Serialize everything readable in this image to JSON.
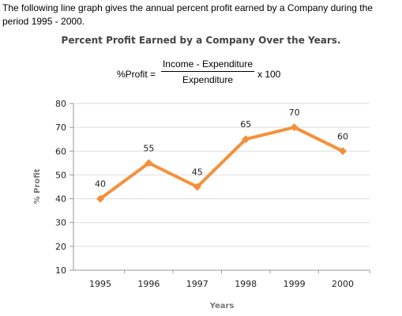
{
  "intro_text": "The following line graph gives the annual percent profit earned by a Company during the period 1995 - 2000.",
  "formula": {
    "lhs": "%Profit =",
    "numerator": "Income - Expenditure",
    "denominator": "Expenditure",
    "rhs": "x 100"
  },
  "colors": {
    "line": "#F4903A",
    "grid": "#dddddd",
    "axis": "#999999"
  },
  "chart_data": {
    "type": "line",
    "title": "Percent Profit Earned by a Company Over the Years.",
    "xlabel": "Years",
    "ylabel": "% Profit",
    "categories": [
      "1995",
      "1996",
      "1997",
      "1998",
      "1999",
      "2000"
    ],
    "series": [
      {
        "values": [
          40,
          55,
          45,
          65,
          70,
          60
        ]
      }
    ],
    "ylim": [
      10,
      80
    ],
    "yticks": [
      10,
      20,
      30,
      40,
      50,
      60,
      70,
      80
    ],
    "grid": true,
    "data_labels": true
  }
}
